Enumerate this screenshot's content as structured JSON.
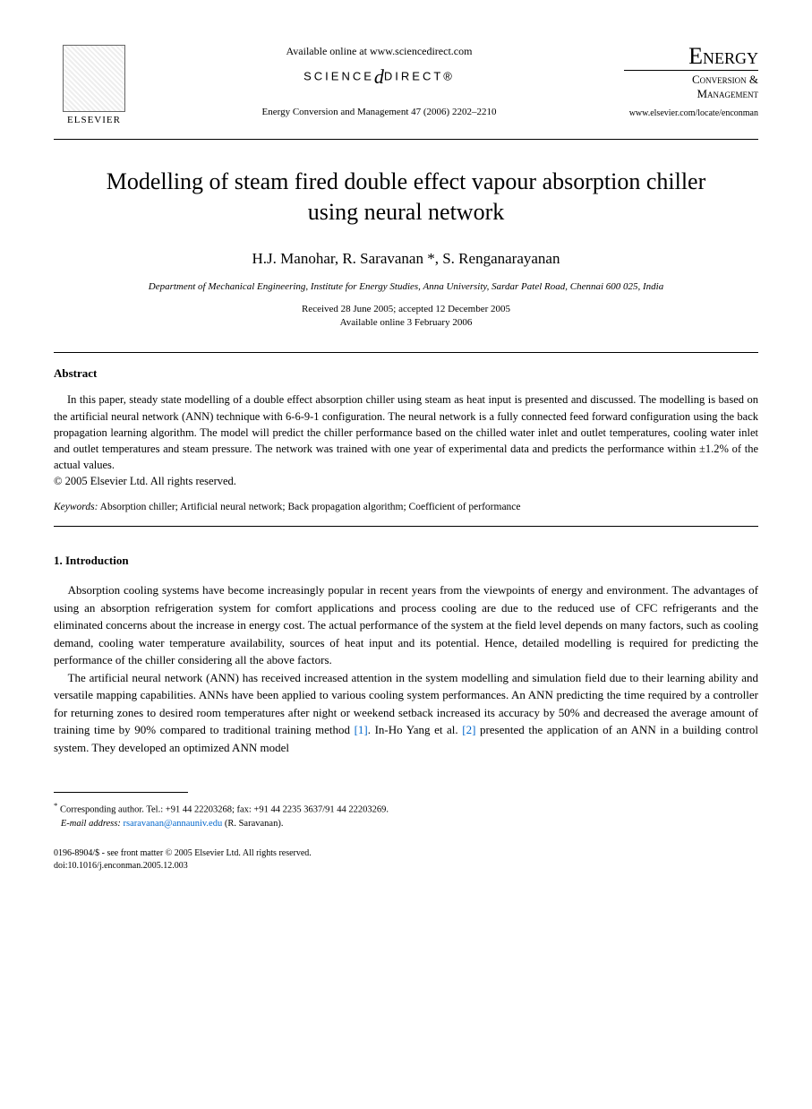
{
  "header": {
    "available_online": "Available online at www.sciencedirect.com",
    "science_direct_pre": "SCIENCE",
    "science_direct_mid": "d",
    "science_direct_post": "DIRECT®",
    "journal_ref": "Energy Conversion and Management 47 (2006) 2202–2210",
    "elsevier_label": "ELSEVIER",
    "journal_name": "Energy",
    "journal_sub1": "Conversion &",
    "journal_sub2": "Management",
    "journal_url": "www.elsevier.com/locate/enconman"
  },
  "title": "Modelling of steam fired double effect vapour absorption chiller using neural network",
  "authors": "H.J. Manohar, R. Saravanan *, S. Renganarayanan",
  "affiliation": "Department of Mechanical Engineering, Institute for Energy Studies, Anna University, Sardar Patel Road, Chennai 600 025, India",
  "dates": {
    "received": "Received 28 June 2005; accepted 12 December 2005",
    "online": "Available online 3 February 2006"
  },
  "abstract": {
    "heading": "Abstract",
    "text": "In this paper, steady state modelling of a double effect absorption chiller using steam as heat input is presented and discussed. The modelling is based on the artificial neural network (ANN) technique with 6-6-9-1 configuration. The neural network is a fully connected feed forward configuration using the back propagation learning algorithm. The model will predict the chiller performance based on the chilled water inlet and outlet temperatures, cooling water inlet and outlet temperatures and steam pressure. The network was trained with one year of experimental data and predicts the performance within ±1.2% of the actual values.",
    "copyright": "© 2005 Elsevier Ltd. All rights reserved."
  },
  "keywords": {
    "label": "Keywords:",
    "text": " Absorption chiller; Artificial neural network; Back propagation algorithm; Coefficient of performance"
  },
  "intro": {
    "heading": "1. Introduction",
    "p1": "Absorption cooling systems have become increasingly popular in recent years from the viewpoints of energy and environment. The advantages of using an absorption refrigeration system for comfort applications and process cooling are due to the reduced use of CFC refrigerants and the eliminated concerns about the increase in energy cost. The actual performance of the system at the field level depends on many factors, such as cooling demand, cooling water temperature availability, sources of heat input and its potential. Hence, detailed modelling is required for predicting the performance of the chiller considering all the above factors.",
    "p2_a": "The artificial neural network (ANN) has received increased attention in the system modelling and simulation field due to their learning ability and versatile mapping capabilities. ANNs have been applied to various cooling system performances. An ANN predicting the time required by a controller for returning zones to desired room temperatures after night or weekend setback increased its accuracy by 50% and decreased the average amount of training time by 90% compared to traditional training method ",
    "ref1": "[1]",
    "p2_b": ". In-Ho Yang et al. ",
    "ref2": "[2]",
    "p2_c": " presented the application of an ANN in a building control system. They developed an optimized ANN model"
  },
  "footnote": {
    "corresponding": "Corresponding author. Tel.: +91 44 22203268; fax: +91 44 2235 3637/91 44 22203269.",
    "email_label": "E-mail address:",
    "email": "rsaravanan@annauniv.edu",
    "email_suffix": " (R. Saravanan)."
  },
  "footer": {
    "line1": "0196-8904/$ - see front matter © 2005 Elsevier Ltd. All rights reserved.",
    "line2": "doi:10.1016/j.enconman.2005.12.003"
  }
}
